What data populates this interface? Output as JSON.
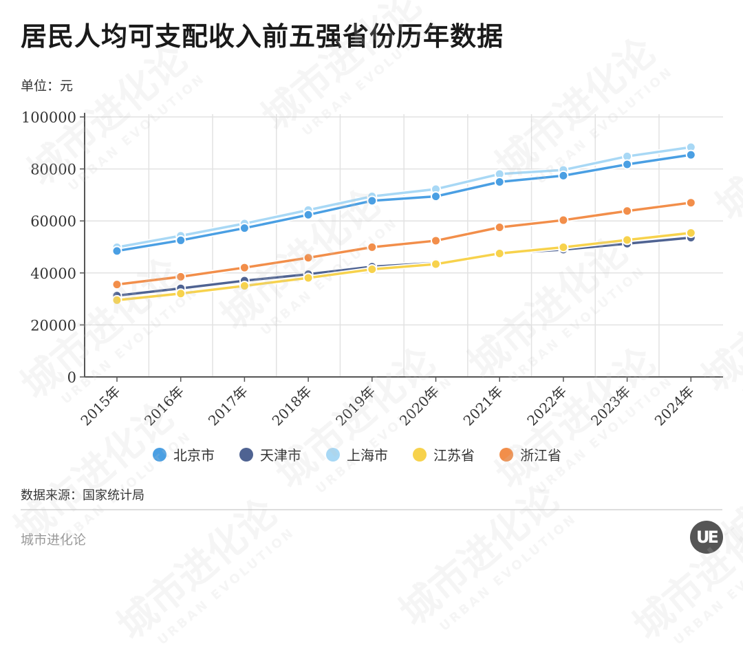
{
  "header": {
    "title": "居民人均可支配收入前五强省份历年数据",
    "unit": "单位：元"
  },
  "footer": {
    "source": "数据来源：国家统计局",
    "brand": "城市进化论",
    "logo_text": "UE"
  },
  "watermark": {
    "cn": "城市进化论",
    "en": "URBAN EVOLUTION"
  },
  "legend": [
    {
      "name": "北京市",
      "color": "#4a9fe3"
    },
    {
      "name": "天津市",
      "color": "#4f6392"
    },
    {
      "name": "上海市",
      "color": "#a8d8f5"
    },
    {
      "name": "江苏省",
      "color": "#f7d24c"
    },
    {
      "name": "浙江省",
      "color": "#f28e4a"
    }
  ],
  "chart_data": {
    "type": "line",
    "title": "居民人均可支配收入前五强省份历年数据",
    "xlabel": "",
    "ylabel": "单位：元",
    "ylim": [
      0,
      100000
    ],
    "yticks": [
      0,
      20000,
      40000,
      60000,
      80000,
      100000
    ],
    "grid": true,
    "legend_position": "bottom",
    "categories": [
      "2015年",
      "2016年",
      "2017年",
      "2018年",
      "2019年",
      "2020年",
      "2021年",
      "2022年",
      "2023年",
      "2024年"
    ],
    "series": [
      {
        "name": "北京市",
        "color": "#4a9fe3",
        "values": [
          48458,
          52530,
          57230,
          62361,
          67756,
          69434,
          75002,
          77415,
          81752,
          85415
        ]
      },
      {
        "name": "天津市",
        "color": "#4f6392",
        "values": [
          31291,
          34074,
          37022,
          39506,
          42404,
          43854,
          47449,
          48976,
          51271,
          53581
        ]
      },
      {
        "name": "上海市",
        "color": "#a8d8f5",
        "values": [
          49867,
          54305,
          58988,
          64183,
          69442,
          72232,
          78027,
          79610,
          84834,
          88366
        ]
      },
      {
        "name": "江苏省",
        "color": "#f7d24c",
        "values": [
          29539,
          32070,
          35024,
          38096,
          41400,
          43390,
          47498,
          49862,
          52674,
          55400
        ]
      },
      {
        "name": "浙江省",
        "color": "#f28e4a",
        "values": [
          35537,
          38529,
          42046,
          45840,
          49899,
          52397,
          57541,
          60302,
          63830,
          67013
        ]
      }
    ]
  }
}
